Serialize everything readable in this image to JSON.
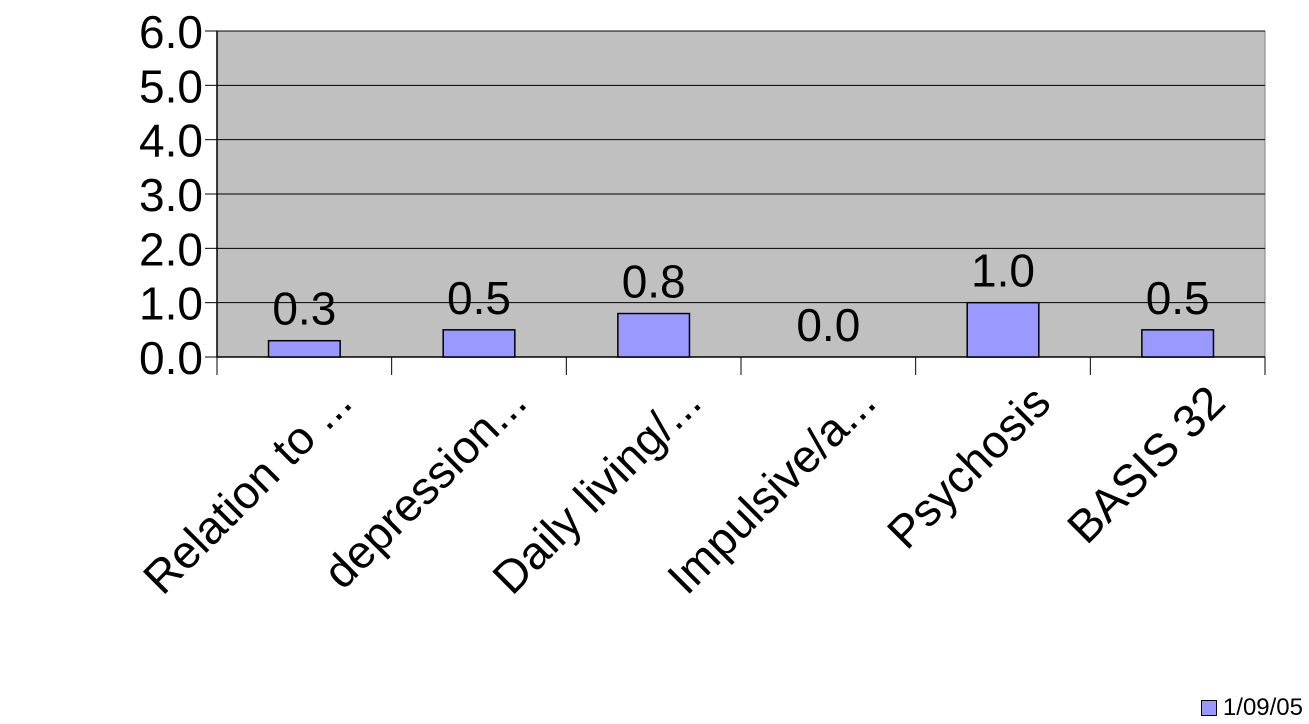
{
  "chart_data": {
    "type": "bar",
    "categories": [
      "Relation to ...",
      "depression...",
      "Daily living/...",
      "Impulsive/a...",
      "Psychosis",
      "BASIS 32"
    ],
    "series": [
      {
        "name": "1/09/05",
        "values": [
          0.3,
          0.5,
          0.8,
          0.0,
          1.0,
          0.5
        ],
        "labels": [
          "0.3",
          "0.5",
          "0.8",
          "0.0",
          "1.0",
          "0.5"
        ]
      }
    ],
    "title": "",
    "xlabel": "",
    "ylabel": "",
    "ylim": [
      0,
      6
    ],
    "yticks": [
      "0.0",
      "1.0",
      "2.0",
      "3.0",
      "4.0",
      "5.0",
      "6.0"
    ],
    "grid": true,
    "legend_position": "bottom-right"
  },
  "colors": {
    "plot_background": "#c0c0c0",
    "bar_fill": "#9999ff",
    "bar_stroke": "#000000",
    "gridline": "#000000"
  }
}
